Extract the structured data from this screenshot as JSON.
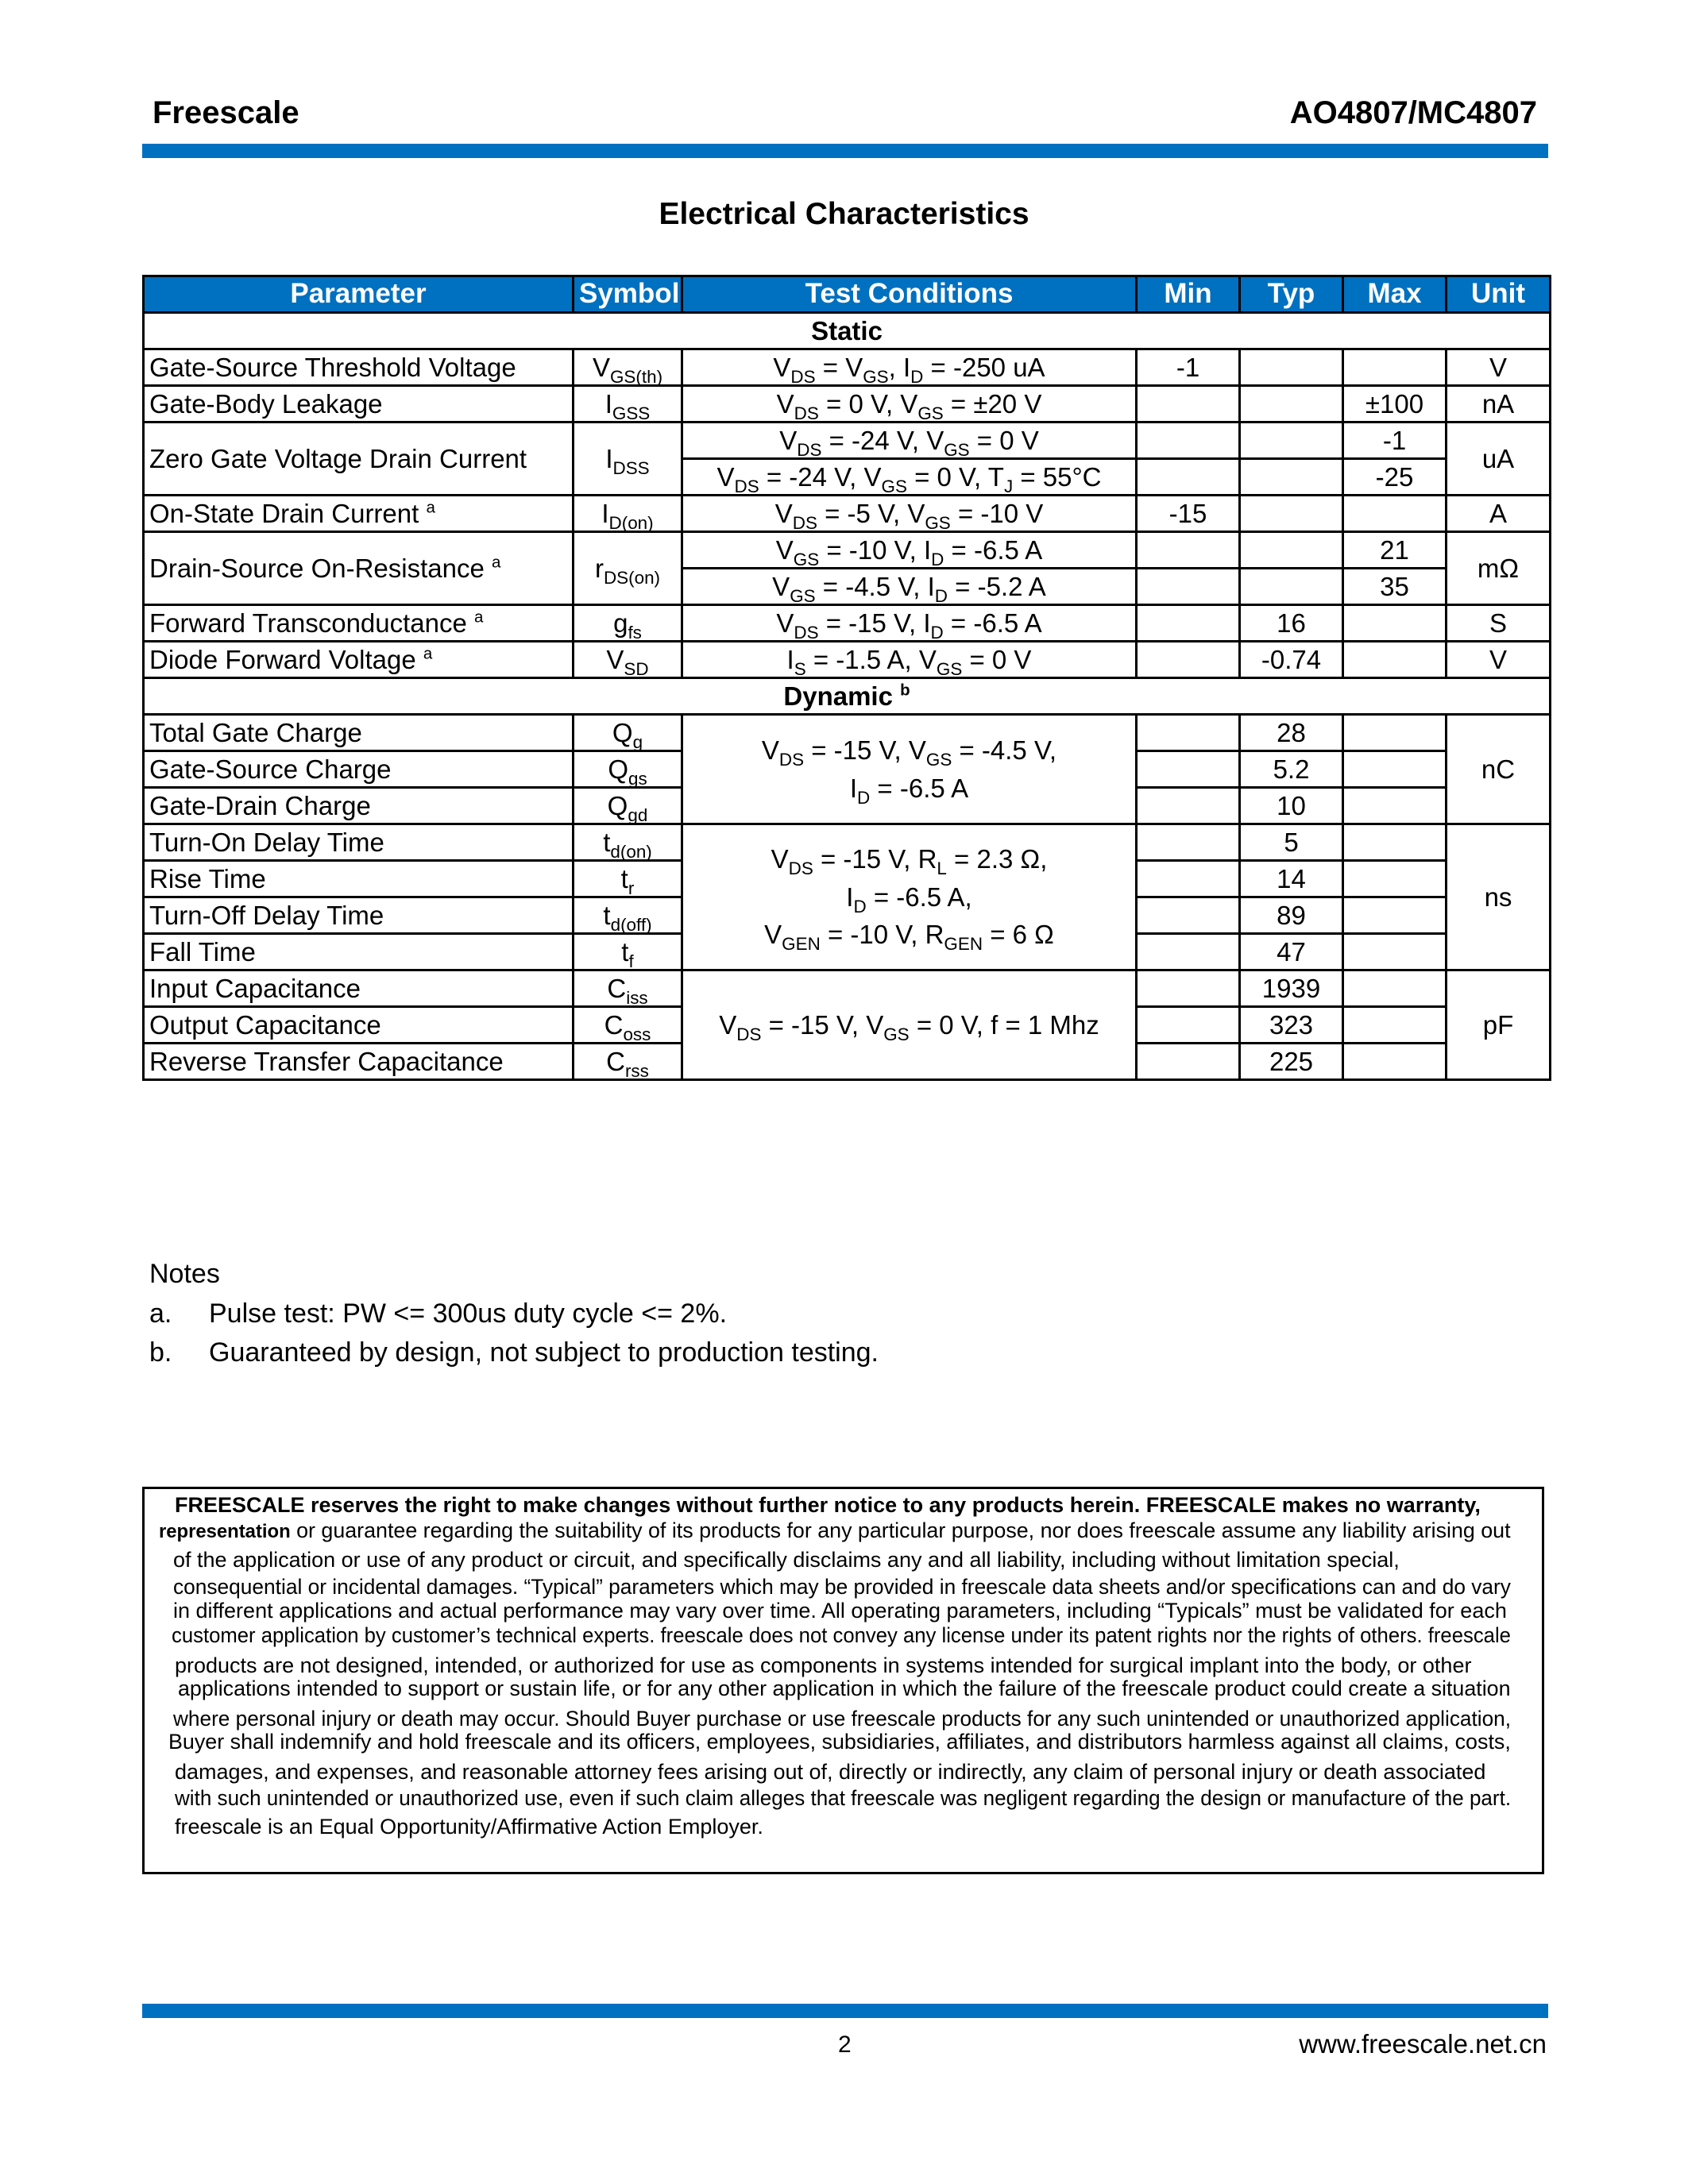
{
  "header": {
    "brand": "Freescale",
    "part_number": "AO4807/MC4807"
  },
  "colors": {
    "accent": "#0070C0",
    "border": "#000000"
  },
  "title": "Electrical Characteristics",
  "table": {
    "columns": [
      "Parameter",
      "Symbol",
      "Test Conditions",
      "Min",
      "Typ",
      "Max",
      "Unit"
    ],
    "rows": [
      {
        "section": "Static"
      },
      {
        "cells": [
          {
            "t": "Gate-Source Threshold Voltage",
            "left": true
          },
          {
            "t": "V_{GS(th)}"
          },
          {
            "t": "V_{DS} = V_{GS}, I_{D} = -250 uA"
          },
          {
            "t": "-1"
          },
          {
            "t": ""
          },
          {
            "t": ""
          },
          {
            "t": "V"
          }
        ]
      },
      {
        "cells": [
          {
            "t": "Gate-Body Leakage",
            "left": true
          },
          {
            "t": "I_{GSS}"
          },
          {
            "t": "V_{DS} = 0 V, V_{GS} = ±20 V"
          },
          {
            "t": ""
          },
          {
            "t": ""
          },
          {
            "t": "±100"
          },
          {
            "t": "nA"
          }
        ]
      },
      {
        "cells": [
          {
            "t": "Zero Gate Voltage Drain Current",
            "left": true,
            "rowspan": 2
          },
          {
            "t": "I_{DSS}",
            "rowspan": 2
          },
          {
            "t": "V_{DS} = -24 V, V_{GS} = 0 V"
          },
          {
            "t": ""
          },
          {
            "t": ""
          },
          {
            "t": "-1"
          },
          {
            "t": "uA",
            "rowspan": 2
          }
        ]
      },
      {
        "cells": [
          {
            "t": "V_{DS} = -24 V, V_{GS} = 0 V, T_{J} = 55°C"
          },
          {
            "t": ""
          },
          {
            "t": ""
          },
          {
            "t": "-25"
          }
        ]
      },
      {
        "cells": [
          {
            "t": "On-State Drain Current ^{a}",
            "left": true
          },
          {
            "t": "I_{D(on)}"
          },
          {
            "t": "V_{DS} = -5 V, V_{GS} = -10 V"
          },
          {
            "t": "-15"
          },
          {
            "t": ""
          },
          {
            "t": ""
          },
          {
            "t": "A"
          }
        ]
      },
      {
        "cells": [
          {
            "t": "Drain-Source On-Resistance ^{a}",
            "left": true,
            "rowspan": 2
          },
          {
            "t": "r_{DS(on)}",
            "rowspan": 2
          },
          {
            "t": "V_{GS} = -10 V, I_{D} = -6.5 A"
          },
          {
            "t": ""
          },
          {
            "t": ""
          },
          {
            "t": "21"
          },
          {
            "t": "mΩ",
            "rowspan": 2
          }
        ]
      },
      {
        "cells": [
          {
            "t": "V_{GS} = -4.5 V, I_{D} = -5.2 A"
          },
          {
            "t": ""
          },
          {
            "t": ""
          },
          {
            "t": "35"
          }
        ]
      },
      {
        "cells": [
          {
            "t": "Forward Transconductance ^{a}",
            "left": true
          },
          {
            "t": "g_{fs}"
          },
          {
            "t": "V_{DS} = -15 V, I_{D} = -6.5 A"
          },
          {
            "t": ""
          },
          {
            "t": "16"
          },
          {
            "t": ""
          },
          {
            "t": "S"
          }
        ]
      },
      {
        "cells": [
          {
            "t": "Diode Forward Voltage ^{a}",
            "left": true
          },
          {
            "t": "V_{SD}"
          },
          {
            "t": "I_{S} = -1.5 A, V_{GS} = 0 V"
          },
          {
            "t": ""
          },
          {
            "t": "-0.74"
          },
          {
            "t": ""
          },
          {
            "t": "V"
          }
        ]
      },
      {
        "section": "Dynamic ^{b}"
      },
      {
        "cells": [
          {
            "t": "Total Gate Charge",
            "left": true
          },
          {
            "t": "Q_{g}"
          },
          {
            "t": "V_{DS} = -15 V, V_{GS} = -4.5 V,\nI_{D} = -6.5 A",
            "rowspan": 3
          },
          {
            "t": ""
          },
          {
            "t": "28"
          },
          {
            "t": ""
          },
          {
            "t": "nC",
            "rowspan": 3
          }
        ]
      },
      {
        "cells": [
          {
            "t": "Gate-Source Charge",
            "left": true
          },
          {
            "t": "Q_{gs}"
          },
          {
            "t": ""
          },
          {
            "t": "5.2"
          },
          {
            "t": ""
          }
        ]
      },
      {
        "cells": [
          {
            "t": "Gate-Drain Charge",
            "left": true
          },
          {
            "t": "Q_{gd}"
          },
          {
            "t": ""
          },
          {
            "t": "10"
          },
          {
            "t": ""
          }
        ]
      },
      {
        "cells": [
          {
            "t": "Turn-On Delay Time",
            "left": true
          },
          {
            "t": "t_{d(on)}"
          },
          {
            "t": "V_{DS} = -15 V, R_{L} = 2.3 Ω,\nI_{D} = -6.5 A,\nV_{GEN} = -10 V, R_{GEN} = 6 Ω",
            "rowspan": 4
          },
          {
            "t": ""
          },
          {
            "t": "5"
          },
          {
            "t": ""
          },
          {
            "t": "ns",
            "rowspan": 4
          }
        ]
      },
      {
        "cells": [
          {
            "t": "Rise Time",
            "left": true
          },
          {
            "t": "t_{r}"
          },
          {
            "t": ""
          },
          {
            "t": "14"
          },
          {
            "t": ""
          }
        ]
      },
      {
        "cells": [
          {
            "t": "Turn-Off Delay Time",
            "left": true
          },
          {
            "t": "t_{d(off)}"
          },
          {
            "t": ""
          },
          {
            "t": "89"
          },
          {
            "t": ""
          }
        ]
      },
      {
        "cells": [
          {
            "t": "Fall Time",
            "left": true
          },
          {
            "t": "t_{f}"
          },
          {
            "t": ""
          },
          {
            "t": "47"
          },
          {
            "t": ""
          }
        ]
      },
      {
        "cells": [
          {
            "t": "Input Capacitance",
            "left": true
          },
          {
            "t": "C_{iss}"
          },
          {
            "t": "V_{DS} = -15 V, V_{GS} = 0 V, f = 1 Mhz",
            "rowspan": 3
          },
          {
            "t": ""
          },
          {
            "t": "1939"
          },
          {
            "t": ""
          },
          {
            "t": "pF",
            "rowspan": 3
          }
        ]
      },
      {
        "cells": [
          {
            "t": "Output Capacitance",
            "left": true
          },
          {
            "t": "C_{oss}"
          },
          {
            "t": ""
          },
          {
            "t": "323"
          },
          {
            "t": ""
          }
        ]
      },
      {
        "cells": [
          {
            "t": "Reverse Transfer Capacitance",
            "left": true
          },
          {
            "t": "C_{rss}"
          },
          {
            "t": ""
          },
          {
            "t": "225"
          },
          {
            "t": ""
          }
        ]
      }
    ]
  },
  "notes": {
    "heading": "Notes",
    "items": [
      {
        "letter": "a.",
        "text": "Pulse test: PW <= 300us duty cycle <= 2%."
      },
      {
        "letter": "b.",
        "text": "Guaranteed by design, not subject to production testing."
      }
    ]
  },
  "disclaimer": {
    "lines": [
      {
        "bold": "FREESCALE  reserves the right to make changes without further notice to any products herein. FREESCALE makes no warranty,",
        "text": ""
      },
      {
        "bold": "representation",
        "text": "  or guarantee regarding the suitability of its products for any particular purpose, nor does freescale assume any liability arising out"
      },
      {
        "bold": "",
        "text": "of the application or use of any product or circuit, and specifically disclaims any and all liability, including without limitation special,"
      },
      {
        "bold": "",
        "text": "consequential or incidental damages. “Typical” parameters which may be provided in freescale data sheets and/or specifications can and do vary"
      },
      {
        "bold": "",
        "text": "in different applications and actual performance may vary over time. All operating parameters, including “Typicals” must be validated for each"
      },
      {
        "bold": "",
        "text": "customer application by customer’s technical experts. freescale does not convey any license under its patent rights nor the rights of others. freescale"
      },
      {
        "bold": "",
        "text": "products are not designed, intended, or authorized for use as components in systems intended for surgical implant into the body, or other"
      },
      {
        "bold": "",
        "text": "applications intended to support or sustain life, or for any other application in which the failure of the freescale product could create a situation"
      },
      {
        "bold": "",
        "text": "where personal injury or death may occur. Should Buyer purchase or use freescale products for any such unintended or unauthorized application,"
      },
      {
        "bold": "",
        "text": "Buyer shall indemnify and hold freescale and its officers, employees, subsidiaries, affiliates, and distributors harmless against all claims, costs,"
      },
      {
        "bold": "",
        "text": "damages, and expenses, and reasonable attorney fees arising out of, directly or indirectly, any claim of personal injury or death associated"
      },
      {
        "bold": "",
        "text": "with such unintended or unauthorized use, even if such claim alleges that freescale was negligent regarding the design or manufacture of the part."
      },
      {
        "bold": "",
        "text": "freescale  is an Equal Opportunity/Affirmative Action Employer."
      }
    ]
  },
  "footer": {
    "page_number": "2",
    "url": "www.freescale.net.cn"
  }
}
